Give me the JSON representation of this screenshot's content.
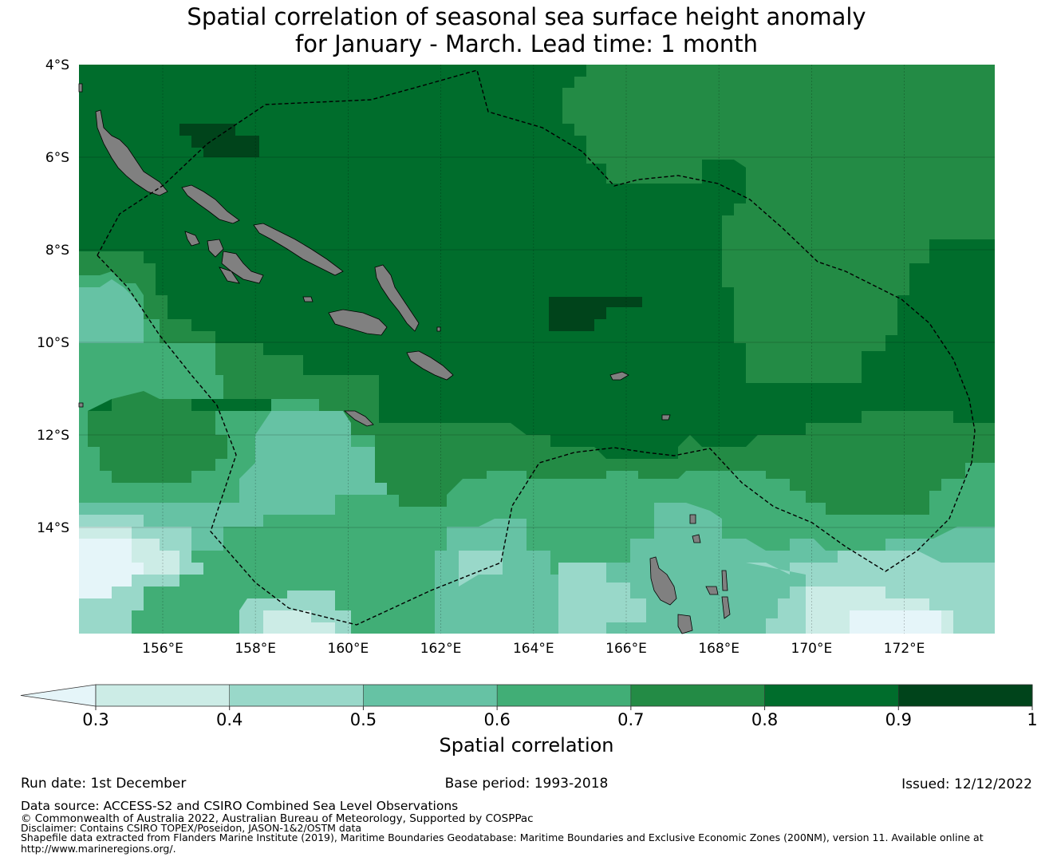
{
  "title": {
    "line1": "Spatial correlation of seasonal sea surface height anomaly",
    "line2": "for January - March. Lead time: 1 month"
  },
  "map": {
    "lat_labels": [
      "4°S",
      "6°S",
      "8°S",
      "10°S",
      "12°S",
      "14°S"
    ],
    "lon_labels": [
      "156°E",
      "158°E",
      "160°E",
      "162°E",
      "164°E",
      "166°E",
      "168°E",
      "170°E",
      "172°E"
    ],
    "lon_range": [
      154.2,
      174.0
    ],
    "lat_range": [
      -16.3,
      -4.0
    ],
    "colors": {
      "lt03": "#e5f5f9",
      "c03": "#ccece6",
      "c04": "#99d8c9",
      "c05": "#66c2a4",
      "c06": "#41ae76",
      "c07": "#238b45",
      "c08": "#006d2c",
      "c09": "#00441b",
      "land": "#808080"
    }
  },
  "colorbar": {
    "ticks": [
      "0.3",
      "0.4",
      "0.5",
      "0.6",
      "0.7",
      "0.8",
      "0.9",
      "1"
    ],
    "label": "Spatial correlation"
  },
  "footer": {
    "run_date": "Run date: 1st December",
    "base_period": "Base period: 1993-2018",
    "issued": "Issued: 12/12/2022",
    "data_source": "Data source: ACCESS-S2 and CSIRO Combined Sea Level Observations",
    "copyright": "© Commonwealth of Australia 2022, Australian Bureau of Meteorology, Supported by COSPPac",
    "disclaimer": "Disclaimer: Contains CSIRO TOPEX/Poseidon, JASON-1&2/OSTM data",
    "shapefile1": "Shapefile data extracted from Flanders Marine Institute (2019), Maritime Boundaries Geodatabase: Maritime Boundaries and Exclusive Economic Zones (200NM), version 11. Available online at",
    "shapefile2": "http://www.marineregions.org/."
  }
}
